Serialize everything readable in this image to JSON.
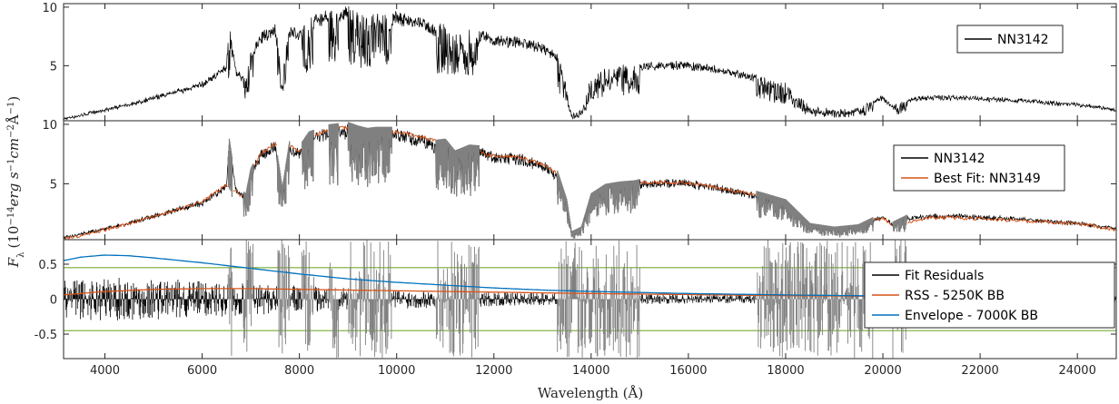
{
  "chart_data": [
    {
      "type": "line",
      "panel": "top",
      "xlim": [
        3150,
        24800
      ],
      "ylim": [
        0.3,
        10.3
      ],
      "yticks": [
        5,
        10
      ],
      "legend_position": "top-right",
      "colors": {
        "target": "#000000"
      },
      "series": [
        {
          "name": "NN3142",
          "color": "#000000",
          "x": [
            3150,
            3500,
            4000,
            4500,
            5000,
            5500,
            6000,
            6300,
            6500,
            6560,
            6700,
            6900,
            7000,
            7200,
            7500,
            7650,
            7800,
            8000,
            8200,
            8400,
            8600,
            8800,
            9000,
            9200,
            9400,
            9600,
            9800,
            10000,
            10500,
            10800,
            11000,
            11200,
            11500,
            11800,
            12000,
            12500,
            13000,
            13300,
            13500,
            13600,
            13800,
            14000,
            14300,
            14600,
            14900,
            15100,
            15500,
            16000,
            16500,
            17000,
            17500,
            18000,
            18500,
            19000,
            19500,
            19800,
            20000,
            20200,
            20500,
            21000,
            21500,
            22000,
            22500,
            23000,
            23500,
            24000,
            24800
          ],
          "y": [
            0.5,
            0.8,
            1.3,
            1.8,
            2.4,
            3.0,
            3.6,
            4.5,
            5.2,
            8.6,
            4.6,
            4.0,
            6.1,
            7.8,
            8.6,
            4.5,
            8.5,
            8.0,
            9.2,
            9.5,
            9.8,
            9.9,
            10.0,
            9.7,
            9.5,
            9.6,
            9.6,
            9.6,
            9.2,
            8.5,
            8.6,
            7.6,
            8.1,
            8.0,
            7.6,
            7.5,
            6.9,
            6.0,
            3.5,
            0.8,
            1.2,
            4.0,
            4.8,
            5.0,
            5.1,
            5.3,
            5.4,
            5.3,
            5.0,
            4.6,
            4.1,
            3.5,
            1.5,
            1.2,
            1.4,
            2.0,
            2.4,
            1.6,
            2.2,
            2.4,
            2.4,
            2.3,
            2.2,
            2.1,
            1.9,
            1.8,
            1.3
          ]
        }
      ]
    },
    {
      "type": "line",
      "panel": "middle",
      "xlim": [
        3150,
        24800
      ],
      "ylim": [
        0.3,
        10.3
      ],
      "yticks": [
        5,
        10
      ],
      "legend_position": "top-right",
      "colors": {
        "target": "#000000",
        "fit": "#d95319",
        "masked": "#808080"
      },
      "series": [
        {
          "name": "NN3142",
          "color": "#000000",
          "x": [
            3150,
            3500,
            4000,
            4500,
            5000,
            5500,
            6000,
            6300,
            6500,
            6560,
            6700,
            6900,
            7000,
            7200,
            7500,
            7650,
            7800,
            8000,
            8200,
            8400,
            8600,
            8800,
            9000,
            9200,
            9400,
            9600,
            9800,
            10000,
            10500,
            10800,
            11000,
            11200,
            11500,
            11800,
            12000,
            12500,
            13000,
            13300,
            13500,
            13600,
            13800,
            14000,
            14300,
            14600,
            14900,
            15100,
            15500,
            16000,
            16500,
            17000,
            17500,
            18000,
            18500,
            19000,
            19500,
            19800,
            20000,
            20200,
            20500,
            21000,
            21500,
            22000,
            22500,
            23000,
            23500,
            24000,
            24800
          ],
          "y": [
            0.5,
            0.8,
            1.3,
            1.8,
            2.4,
            3.0,
            3.6,
            4.5,
            5.2,
            8.6,
            4.6,
            4.0,
            6.1,
            7.8,
            8.6,
            4.5,
            8.5,
            8.0,
            9.2,
            9.5,
            9.8,
            9.9,
            10.0,
            9.7,
            9.5,
            9.6,
            9.6,
            9.6,
            9.2,
            8.5,
            8.6,
            7.6,
            8.1,
            8.0,
            7.6,
            7.5,
            6.9,
            6.0,
            3.5,
            0.8,
            1.2,
            4.0,
            4.8,
            5.0,
            5.1,
            5.3,
            5.4,
            5.3,
            5.0,
            4.6,
            4.1,
            3.5,
            1.5,
            1.2,
            1.4,
            2.0,
            2.4,
            1.6,
            2.2,
            2.4,
            2.4,
            2.3,
            2.2,
            2.1,
            1.9,
            1.8,
            1.3
          ]
        },
        {
          "name": "Best Fit: NN3149",
          "color": "#d95319",
          "x": [
            3150,
            3500,
            4000,
            4500,
            5000,
            5500,
            6000,
            6300,
            6500,
            6700,
            6900,
            7000,
            7200,
            7500,
            7800,
            8000,
            8200,
            8400,
            8600,
            8800,
            9000,
            9400,
            9800,
            10000,
            10500,
            12000,
            12500,
            13000,
            13300,
            15100,
            15500,
            16000,
            16500,
            17000,
            17300,
            19800,
            20000,
            20200,
            20700,
            21000,
            21500,
            22000,
            22500,
            23000,
            23500,
            24000,
            24800
          ],
          "y": [
            0.5,
            0.8,
            1.3,
            1.8,
            2.4,
            3.0,
            3.6,
            4.5,
            5.1,
            4.5,
            4.0,
            6.0,
            7.7,
            8.5,
            8.4,
            7.9,
            9.1,
            9.4,
            9.7,
            9.8,
            9.9,
            9.4,
            9.5,
            9.5,
            9.1,
            7.5,
            7.4,
            6.8,
            6.0,
            5.2,
            5.3,
            5.2,
            4.9,
            4.5,
            4.3,
            2.0,
            2.3,
            1.6,
            2.1,
            2.3,
            2.3,
            2.2,
            2.1,
            2.0,
            1.9,
            1.8,
            1.3
          ]
        }
      ]
    },
    {
      "type": "line",
      "panel": "bottom",
      "xlim": [
        3150,
        24800
      ],
      "ylim": [
        -0.85,
        0.85
      ],
      "yticks": [
        -0.5,
        0,
        0.5
      ],
      "xticks": [
        4000,
        6000,
        8000,
        10000,
        12000,
        14000,
        16000,
        18000,
        20000,
        22000,
        24000
      ],
      "xlabel": "Wavelength (Å)",
      "ylabel": "F_λ (10^-14 erg s^-1 cm^-2 Å^-1)",
      "legend_position": "right",
      "colors": {
        "residuals": "#000000",
        "masked": "#808080",
        "thresholds": "#77ac30"
      },
      "threshold_lines": [
        0.45,
        -0.45
      ],
      "series": [
        {
          "name": "Fit Residuals",
          "color": "#000000",
          "x": [
            3150,
            24800
          ],
          "y": [
            0,
            0
          ]
        },
        {
          "name": "RSS - 5250K BB",
          "color": "#d95319",
          "x": [
            3150,
            4000,
            5000,
            6000,
            7000,
            8000,
            9000,
            10000,
            12000,
            14000,
            16000,
            18000,
            20000,
            22000,
            24800
          ],
          "y": [
            0.06,
            0.11,
            0.14,
            0.15,
            0.15,
            0.14,
            0.13,
            0.12,
            0.1,
            0.08,
            0.065,
            0.05,
            0.04,
            0.035,
            0.03
          ]
        },
        {
          "name": "Envelope - 7000K BB",
          "color": "#0072bd",
          "x": [
            3150,
            3500,
            4000,
            4500,
            5000,
            6000,
            7000,
            8000,
            9000,
            10000,
            11000,
            12000,
            13000,
            14000,
            16000,
            18000,
            20000,
            22000,
            24800
          ],
          "y": [
            0.55,
            0.6,
            0.63,
            0.62,
            0.59,
            0.52,
            0.44,
            0.36,
            0.29,
            0.24,
            0.2,
            0.16,
            0.13,
            0.11,
            0.08,
            0.06,
            0.045,
            0.035,
            0.025
          ]
        }
      ]
    }
  ]
}
